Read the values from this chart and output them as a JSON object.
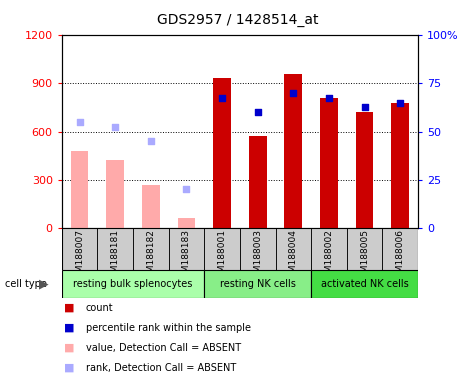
{
  "title": "GDS2957 / 1428514_at",
  "samples": [
    "GSM188007",
    "GSM188181",
    "GSM188182",
    "GSM188183",
    "GSM188001",
    "GSM188003",
    "GSM188004",
    "GSM188002",
    "GSM188005",
    "GSM188006"
  ],
  "absent": [
    true,
    true,
    true,
    true,
    false,
    false,
    false,
    false,
    false,
    false
  ],
  "count_values": [
    480,
    420,
    270,
    60,
    930,
    570,
    960,
    810,
    720,
    780
  ],
  "percentile_values": [
    660,
    630,
    540,
    240,
    810,
    720,
    840,
    810,
    750,
    780
  ],
  "ylim_left": [
    0,
    1200
  ],
  "ylim_right": [
    0,
    100
  ],
  "yticks_left": [
    0,
    300,
    600,
    900,
    1200
  ],
  "yticks_right": [
    0,
    25,
    50,
    75,
    100
  ],
  "yticklabels_right": [
    "0",
    "25",
    "50",
    "75",
    "100%"
  ],
  "groups": [
    {
      "label": "resting bulk splenocytes",
      "start": 0,
      "end": 4,
      "color": "#aaffaa"
    },
    {
      "label": "resting NK cells",
      "start": 4,
      "end": 7,
      "color": "#88ee88"
    },
    {
      "label": "activated NK cells",
      "start": 7,
      "end": 10,
      "color": "#44dd44"
    }
  ],
  "bar_color_present": "#cc0000",
  "bar_color_absent": "#ffaaaa",
  "dot_color_present": "#0000cc",
  "dot_color_absent": "#aaaaff",
  "sample_box_color": "#cccccc",
  "bar_width": 0.5,
  "dot_size": 25,
  "legend_items": [
    {
      "label": "count",
      "color": "#cc0000"
    },
    {
      "label": "percentile rank within the sample",
      "color": "#0000cc"
    },
    {
      "label": "value, Detection Call = ABSENT",
      "color": "#ffaaaa"
    },
    {
      "label": "rank, Detection Call = ABSENT",
      "color": "#aaaaff"
    }
  ],
  "cell_type_label": "cell type"
}
